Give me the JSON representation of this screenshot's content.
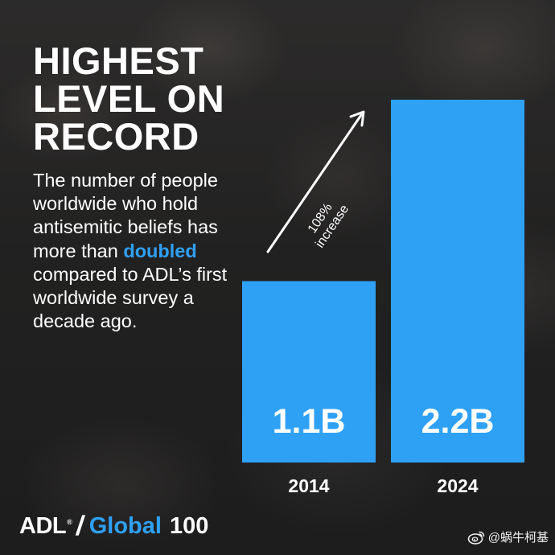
{
  "headline": [
    "HIGHEST",
    "LEVEL ON",
    "RECORD"
  ],
  "body": {
    "before": "The number of people worldwide who hold antisemitic beliefs has more than ",
    "highlight": "doubled",
    "after": " compared to ADL’s first worldwide survey a decade ago."
  },
  "chart_data": {
    "type": "bar",
    "categories": [
      "2014",
      "2024"
    ],
    "values": [
      1.1,
      2.2
    ],
    "value_labels": [
      "1.1B",
      "2.2B"
    ],
    "annotation": [
      "108%",
      "increase"
    ],
    "bar_color": "#2ea1f5"
  },
  "logo": {
    "adl": "ADL",
    "slash": "/",
    "global": "Global",
    "number": "100"
  },
  "watermark": {
    "text": "@蜗牛柯基",
    "icon": "weibo-icon"
  },
  "colors": {
    "accent": "#2ea1f5",
    "text": "#ffffff"
  }
}
